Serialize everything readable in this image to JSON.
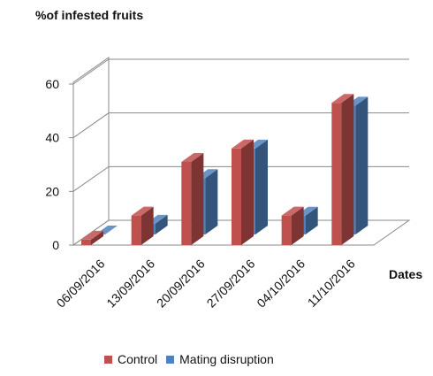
{
  "chart_data": {
    "type": "bar",
    "title": "",
    "ylabel": "%of infested fruits",
    "xlabel": "Dates",
    "categories": [
      "06/09/2016",
      "13/09/2016",
      "20/09/2016",
      "27/09/2016",
      "04/10/2016",
      "11/10/2016"
    ],
    "series": [
      {
        "name": "Control",
        "values": [
          2,
          11,
          31,
          36,
          11,
          53
        ],
        "color": "#c0504d"
      },
      {
        "name": "Mating disruption",
        "values": [
          0,
          4,
          21,
          32,
          7,
          48
        ],
        "color": "#4f81bd"
      }
    ],
    "ylim": [
      0,
      60
    ],
    "yticks": [
      0,
      20,
      40,
      60
    ],
    "grid": true,
    "style": "3d-clustered",
    "legend_position": "bottom"
  }
}
